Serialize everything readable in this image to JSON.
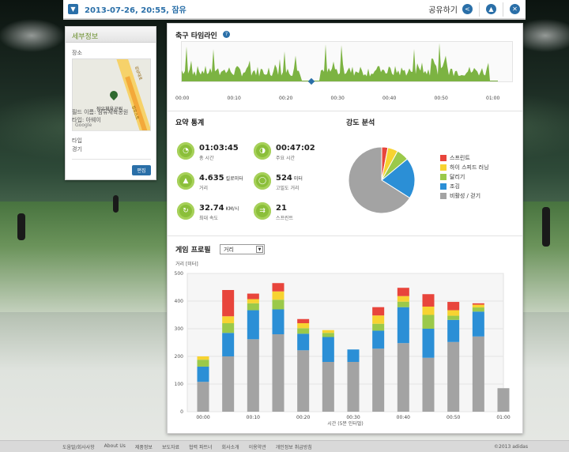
{
  "header": {
    "date_label": "2013-07-26, 20:55, 잠유",
    "share_label": "공유하기"
  },
  "sidebar": {
    "title": "세부정보",
    "place_label": "장소",
    "map_place": "잠유체육공원",
    "map_logo": "Google",
    "map_road_a": "강남대로",
    "map_road_b": "정유스트",
    "field_name": "필드 이름: 잠유체육공원",
    "field_type": "타입: 아웨이",
    "type_label": "타입",
    "type_value": "경기",
    "edit_label": "편집"
  },
  "timeline": {
    "title": "축구 타임라인",
    "ticks": [
      "00:00",
      "00:10",
      "00:20",
      "00:30",
      "00:40",
      "00:50",
      "01:00"
    ],
    "color": "#7cb342"
  },
  "summary": {
    "title": "요약 통계",
    "items": [
      {
        "value": "01:03:45",
        "unit": "",
        "label": "총 시간",
        "icon": "clock-icon"
      },
      {
        "value": "00:47:02",
        "unit": "",
        "label": "주요 시간",
        "icon": "timer-icon"
      },
      {
        "value": "4.635",
        "unit": "킬로미터",
        "label": "거리",
        "icon": "distance-icon"
      },
      {
        "value": "524",
        "unit": "미터",
        "label": "고밀도 거리",
        "icon": "intensity-icon"
      },
      {
        "value": "32.74",
        "unit": "KM/시",
        "label": "최대 속도",
        "icon": "speed-icon"
      },
      {
        "value": "21",
        "unit": "",
        "label": "스프린트",
        "icon": "sprint-icon"
      }
    ]
  },
  "intensity": {
    "title": "강도 분석",
    "legend": [
      {
        "label": "스프린트",
        "color": "#e8453c"
      },
      {
        "label": "하이 스피드 러닝",
        "color": "#f7d331"
      },
      {
        "label": "달리기",
        "color": "#9bc94a"
      },
      {
        "label": "조깅",
        "color": "#2b8fd6"
      },
      {
        "label": "비활성 / 걷기",
        "color": "#a3a3a3"
      }
    ]
  },
  "profile": {
    "title": "게임 프로필",
    "select_value": "거리",
    "select_arrow": "▼"
  },
  "chart_data": [
    {
      "type": "pie",
      "title": "강도 분석",
      "labels": [
        "스프린트",
        "하이 스피드 러닝",
        "달리기",
        "조깅",
        "비활성 / 걷기"
      ],
      "values": [
        3,
        5,
        6,
        20,
        66
      ],
      "colors": [
        "#e8453c",
        "#f7d331",
        "#9bc94a",
        "#2b8fd6",
        "#a3a3a3"
      ]
    },
    {
      "type": "bar",
      "stacked": true,
      "ylabel": "거리 [미터]",
      "xlabel": "시간 (5분 인터벌)",
      "ylim": [
        0,
        500
      ],
      "yticks": [
        0,
        100,
        200,
        300,
        400,
        500
      ],
      "x_ticks": [
        "00:00",
        "00:10",
        "00:20",
        "00:30",
        "00:40",
        "00:50",
        "01:00"
      ],
      "categories": [
        "00:00",
        "00:05",
        "00:10",
        "00:15",
        "00:20",
        "00:25",
        "00:30",
        "00:35",
        "00:40",
        "00:45",
        "00:50",
        "00:55",
        "01:00"
      ],
      "series": [
        {
          "name": "비활성 / 걷기",
          "color": "#a3a3a3",
          "values": [
            108,
            200,
            262,
            280,
            222,
            180,
            180,
            228,
            248,
            195,
            252,
            272,
            85
          ]
        },
        {
          "name": "조깅",
          "color": "#2b8fd6",
          "values": [
            55,
            85,
            105,
            90,
            60,
            90,
            45,
            65,
            130,
            105,
            80,
            90,
            0
          ]
        },
        {
          "name": "달리기",
          "color": "#9bc94a",
          "values": [
            25,
            35,
            25,
            35,
            20,
            15,
            0,
            25,
            20,
            50,
            15,
            15,
            0
          ]
        },
        {
          "name": "하이 스피드 러닝",
          "color": "#f7d331",
          "values": [
            12,
            25,
            15,
            30,
            18,
            10,
            0,
            30,
            20,
            30,
            20,
            10,
            0
          ]
        },
        {
          "name": "스프린트",
          "color": "#e8453c",
          "values": [
            0,
            95,
            20,
            30,
            15,
            0,
            0,
            30,
            30,
            45,
            30,
            5,
            0
          ]
        }
      ]
    }
  ]
}
